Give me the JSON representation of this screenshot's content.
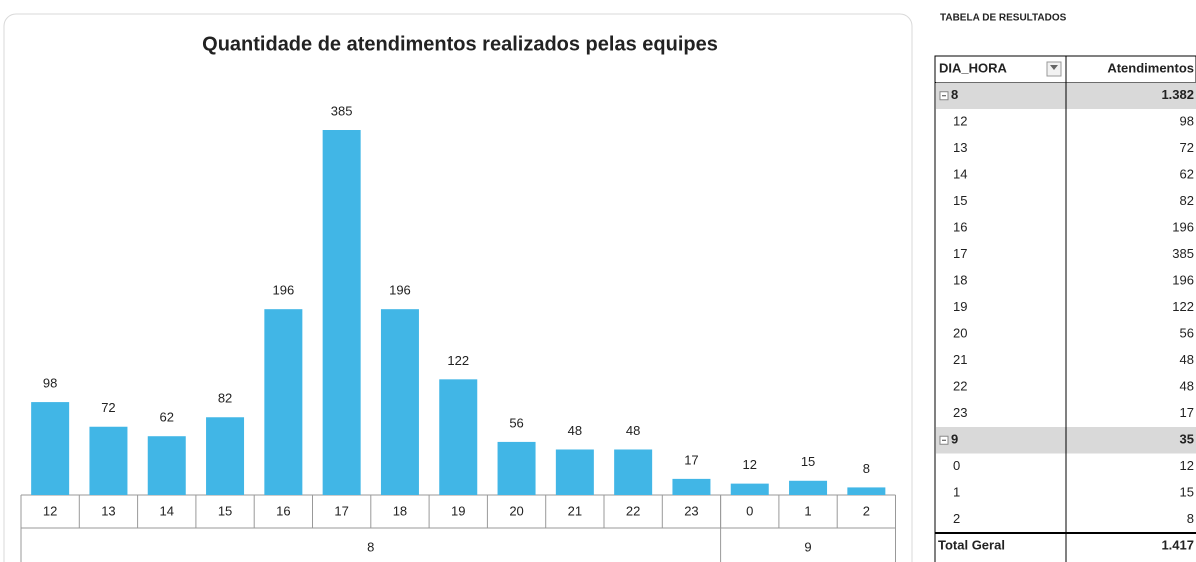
{
  "chart_data": {
    "type": "bar",
    "title": "Quantidade de atendimentos realizados pelas equipes",
    "color": "#41b6e6",
    "groups": [
      {
        "label": "8",
        "categories": [
          "12",
          "13",
          "14",
          "15",
          "16",
          "17",
          "18",
          "19",
          "20",
          "21",
          "22",
          "23"
        ],
        "values": [
          98,
          72,
          62,
          82,
          196,
          385,
          196,
          122,
          56,
          48,
          48,
          17
        ]
      },
      {
        "label": "9",
        "categories": [
          "0",
          "1",
          "2"
        ],
        "values": [
          12,
          15,
          8
        ]
      }
    ]
  },
  "table": {
    "title": "TABELA DE RESULTADOS",
    "headers": [
      "DIA_HORA",
      "Atendimentos"
    ],
    "groups": [
      {
        "label": "8",
        "total": "1.382",
        "rows": [
          [
            "12",
            "98"
          ],
          [
            "13",
            "72"
          ],
          [
            "14",
            "62"
          ],
          [
            "15",
            "82"
          ],
          [
            "16",
            "196"
          ],
          [
            "17",
            "385"
          ],
          [
            "18",
            "196"
          ],
          [
            "19",
            "122"
          ],
          [
            "20",
            "56"
          ],
          [
            "21",
            "48"
          ],
          [
            "22",
            "48"
          ],
          [
            "23",
            "17"
          ]
        ]
      },
      {
        "label": "9",
        "total": "35",
        "rows": [
          [
            "0",
            "12"
          ],
          [
            "1",
            "15"
          ],
          [
            "2",
            "8"
          ]
        ]
      }
    ],
    "total": [
      "Total Geral",
      "1.417"
    ]
  }
}
